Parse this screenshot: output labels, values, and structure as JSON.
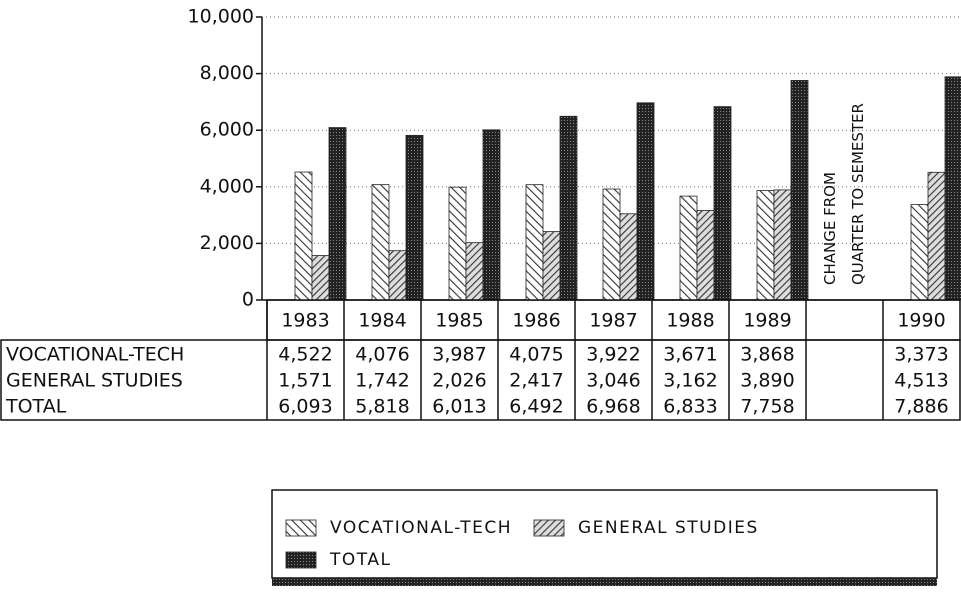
{
  "chart_data": {
    "type": "bar",
    "categories": [
      "1983",
      "1984",
      "1985",
      "1986",
      "1987",
      "1988",
      "1989",
      null,
      "1990"
    ],
    "series": [
      {
        "name": "VOCATIONAL-TECH",
        "color": "#555555",
        "values": [
          4522,
          4076,
          3987,
          4075,
          3922,
          3671,
          3868,
          null,
          3373
        ],
        "value_labels": [
          "4,522",
          "4,076",
          "3,987",
          "4,075",
          "3,922",
          "3,671",
          "3,868",
          null,
          "3,373"
        ]
      },
      {
        "name": "GENERAL STUDIES",
        "color": "#444444",
        "values": [
          1571,
          1742,
          2026,
          2417,
          3046,
          3162,
          3890,
          null,
          4513
        ],
        "value_labels": [
          "1,571",
          "1,742",
          "2,026",
          "2,417",
          "3,046",
          "3,162",
          "3,890",
          null,
          "4,513"
        ]
      },
      {
        "name": "TOTAL",
        "color": "#222222",
        "values": [
          6093,
          5818,
          6013,
          6492,
          6968,
          6833,
          7758,
          null,
          7886
        ],
        "value_labels": [
          "6,093",
          "5,818",
          "6,013",
          "6,492",
          "6,968",
          "6,833",
          "7,758",
          null,
          "7,886"
        ]
      }
    ],
    "annotations": [
      "CHANGE FROM",
      "QUARTER TO SEMESTER"
    ],
    "ylim": [
      0,
      10000
    ],
    "yticks": [
      0,
      {
        "value": 2000,
        "label": "2,000"
      },
      {
        "value": 4000,
        "label": "4,000"
      },
      {
        "value": 6000,
        "label": "6,000"
      },
      {
        "value": 8000,
        "label": "8,000"
      },
      {
        "value": 10000,
        "label": "10,000"
      }
    ],
    "grid": true
  }
}
